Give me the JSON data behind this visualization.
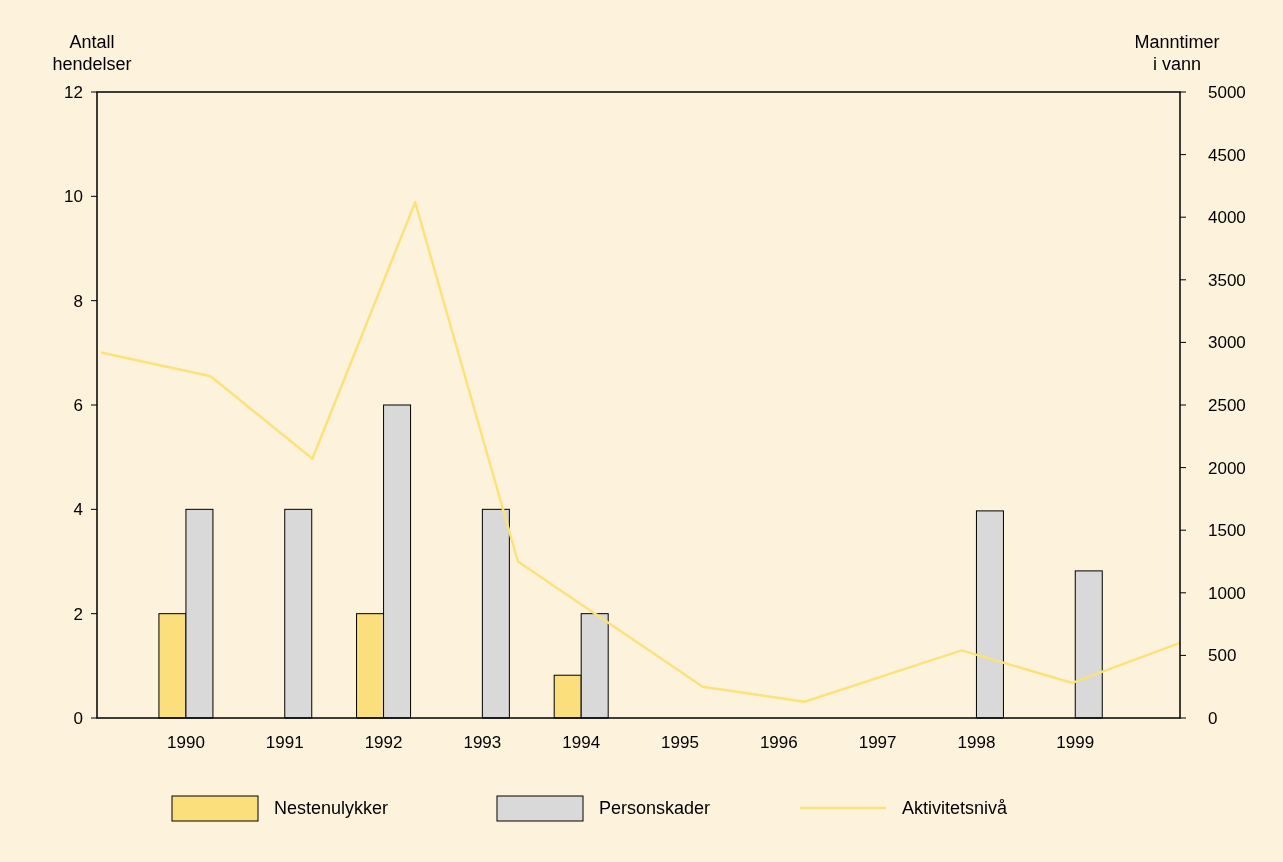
{
  "chart_data": {
    "type": "bar",
    "ylabel": "Antall\nhendelser",
    "y2label": "Manntimer\ni vann",
    "x": [
      1990,
      1991,
      1992,
      1993,
      1994,
      1995,
      1996,
      1997,
      1998,
      1999
    ],
    "xlim": [
      1989.1,
      2000.06
    ],
    "xticks": [
      1990,
      1991,
      1992,
      1993,
      1994,
      1995,
      1996,
      1997,
      1998,
      1999
    ],
    "ylim": [
      0,
      12
    ],
    "yticks": [
      0,
      2,
      4,
      6,
      8,
      10,
      12
    ],
    "y2lim": [
      0,
      5000
    ],
    "y2ticks": [
      0,
      500,
      1000,
      1500,
      2000,
      2500,
      3000,
      3500,
      4000,
      4500,
      5000
    ],
    "series": [
      {
        "name": "Nestenulykker",
        "color": "#fadf7c",
        "values": [
          2,
          0,
          2,
          0,
          0.82,
          0,
          0,
          0,
          0,
          0
        ]
      },
      {
        "name": "Personskader",
        "color": "#d9d9d9",
        "values": [
          4,
          4,
          6,
          4,
          2,
          0,
          0,
          0,
          3.97,
          2.82
        ]
      },
      {
        "type": "line",
        "name": "Aktivitetsnivå",
        "color": "#fbe27a",
        "axis": "y2",
        "x": [
          1989.14,
          1990.25,
          1991.28,
          1992.32,
          1993.36,
          1995.23,
          1996.26,
          1997.85,
          1998.97,
          2000.06
        ],
        "values": [
          2920,
          2730,
          2070,
          4120,
          1250,
          250,
          130,
          540,
          280,
          600
        ]
      }
    ],
    "grid": false,
    "legend": "bottom",
    "marker": "none"
  }
}
